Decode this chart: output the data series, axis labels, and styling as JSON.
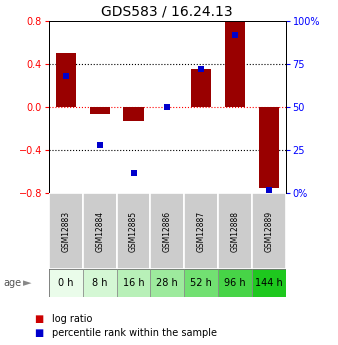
{
  "title": "GDS583 / 16.24.13",
  "samples": [
    "GSM12883",
    "GSM12884",
    "GSM12885",
    "GSM12886",
    "GSM12887",
    "GSM12888",
    "GSM12889"
  ],
  "ages": [
    "0 h",
    "8 h",
    "16 h",
    "28 h",
    "52 h",
    "96 h",
    "144 h"
  ],
  "log_ratio": [
    0.5,
    -0.07,
    -0.13,
    0.0,
    0.35,
    0.8,
    -0.75
  ],
  "percentile_rank": [
    68,
    28,
    12,
    50,
    72,
    92,
    2
  ],
  "bar_color": "#990000",
  "dot_color": "#0000cc",
  "ylim": [
    -0.8,
    0.8
  ],
  "y2lim": [
    0,
    100
  ],
  "yticks": [
    -0.8,
    -0.4,
    0.0,
    0.4,
    0.8
  ],
  "y2ticks": [
    0,
    25,
    50,
    75,
    100
  ],
  "y2ticklabels": [
    "0%",
    "25",
    "50",
    "75",
    "100%"
  ],
  "sample_bg_color": "#cccccc",
  "age_colors": [
    "#eafcea",
    "#d4f7d4",
    "#b8f0b8",
    "#9dea9d",
    "#72e072",
    "#47d447",
    "#1ec81e"
  ],
  "legend_items": [
    "log ratio",
    "percentile rank within the sample"
  ],
  "legend_colors": [
    "#cc0000",
    "#0000cc"
  ],
  "bar_width": 0.6,
  "title_fontsize": 10,
  "tick_fontsize": 7,
  "sample_fontsize": 5.5,
  "age_fontsize": 7,
  "legend_fontsize": 7
}
